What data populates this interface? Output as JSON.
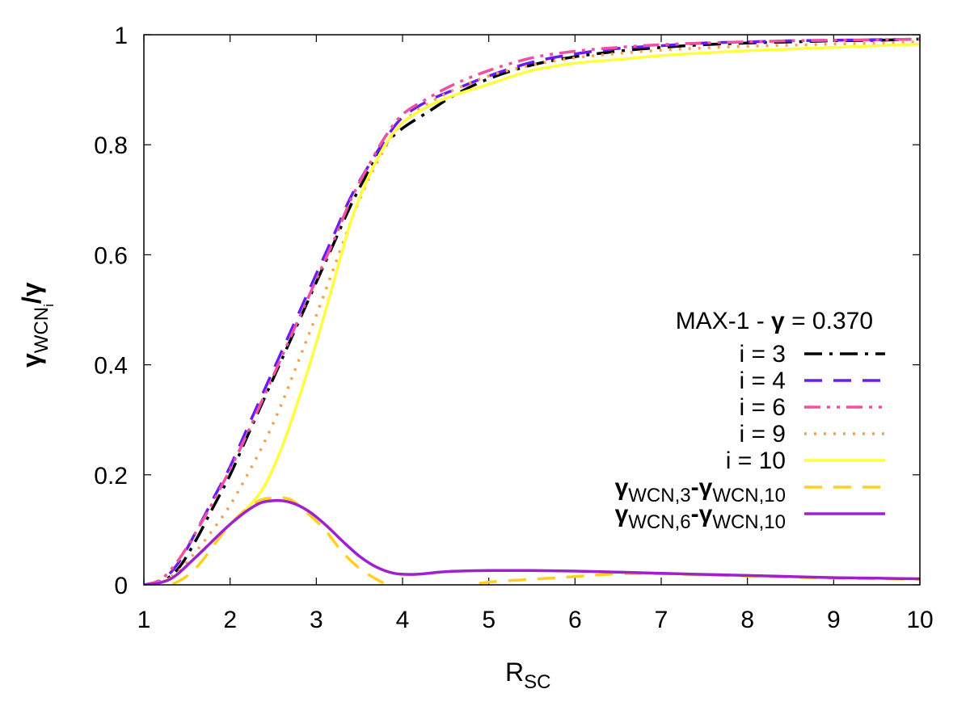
{
  "chart_data": {
    "type": "line",
    "title": "",
    "xlabel": "R",
    "xlabel_sub": "SC",
    "ylabel": "γ",
    "ylabel_sub": "WCN",
    "ylabel_subsub": "i",
    "ylabel_tail": "/γ",
    "xlim": [
      1,
      10
    ],
    "ylim": [
      0,
      1
    ],
    "xticks": [
      1,
      2,
      3,
      4,
      5,
      6,
      7,
      8,
      9,
      10
    ],
    "yticks": [
      0,
      0.2,
      0.4,
      0.6,
      0.8,
      1
    ],
    "ytick_labels": [
      "0",
      "0.2",
      "0.4",
      "0.6",
      "0.8",
      "1"
    ],
    "legend_title": {
      "prefix": "MAX-1 - ",
      "gamma": "γ",
      "suffix": " = 0.370"
    },
    "legend_position": "center-right",
    "series": [
      {
        "name": "i = 3",
        "color": "#000000",
        "style": "dash-dot",
        "x": [
          1.0,
          1.2,
          1.4,
          1.6,
          1.8,
          2.0,
          2.2,
          2.4,
          2.6,
          2.8,
          3.0,
          3.2,
          3.4,
          3.6,
          3.8,
          4.0,
          4.3,
          4.6,
          5.0,
          5.5,
          6.0,
          6.5,
          7.0,
          7.5,
          8.0,
          8.5,
          9.0,
          9.5,
          10.0
        ],
        "y": [
          0.0,
          0.005,
          0.03,
          0.08,
          0.14,
          0.2,
          0.27,
          0.34,
          0.41,
          0.48,
          0.55,
          0.62,
          0.69,
          0.75,
          0.8,
          0.83,
          0.86,
          0.89,
          0.92,
          0.945,
          0.96,
          0.97,
          0.977,
          0.982,
          0.985,
          0.987,
          0.989,
          0.99,
          0.992
        ]
      },
      {
        "name": "i = 4",
        "color": "#6a1bf5",
        "style": "dash",
        "x": [
          1.0,
          1.2,
          1.4,
          1.6,
          1.8,
          2.0,
          2.2,
          2.4,
          2.6,
          2.8,
          3.0,
          3.2,
          3.4,
          3.6,
          3.8,
          4.0,
          4.3,
          4.6,
          5.0,
          5.5,
          6.0,
          6.5,
          7.0,
          7.5,
          8.0,
          8.5,
          9.0,
          9.5,
          10.0
        ],
        "y": [
          0.0,
          0.007,
          0.04,
          0.095,
          0.155,
          0.215,
          0.285,
          0.355,
          0.425,
          0.495,
          0.565,
          0.635,
          0.705,
          0.76,
          0.81,
          0.85,
          0.88,
          0.9,
          0.925,
          0.95,
          0.965,
          0.975,
          0.98,
          0.985,
          0.987,
          0.989,
          0.99,
          0.991,
          0.992
        ]
      },
      {
        "name": "i = 6",
        "color": "#f050a0",
        "style": "dash-dot-dot",
        "x": [
          1.0,
          1.2,
          1.4,
          1.6,
          1.8,
          2.0,
          2.2,
          2.4,
          2.6,
          2.8,
          3.0,
          3.2,
          3.4,
          3.6,
          3.8,
          4.0,
          4.3,
          4.6,
          5.0,
          5.5,
          6.0,
          6.5,
          7.0,
          7.5,
          8.0,
          8.5,
          9.0,
          9.5,
          10.0
        ],
        "y": [
          0.0,
          0.01,
          0.045,
          0.095,
          0.15,
          0.21,
          0.275,
          0.345,
          0.415,
          0.485,
          0.555,
          0.625,
          0.7,
          0.76,
          0.815,
          0.855,
          0.885,
          0.91,
          0.935,
          0.958,
          0.97,
          0.977,
          0.982,
          0.985,
          0.987,
          0.989,
          0.99,
          0.991,
          0.992
        ]
      },
      {
        "name": "i = 9",
        "color": "#f5a050",
        "style": "dot",
        "x": [
          1.0,
          1.2,
          1.4,
          1.6,
          1.8,
          2.0,
          2.2,
          2.4,
          2.6,
          2.8,
          3.0,
          3.2,
          3.4,
          3.6,
          3.8,
          4.0,
          4.3,
          4.6,
          5.0,
          5.5,
          6.0,
          6.5,
          7.0,
          7.5,
          8.0,
          8.5,
          9.0,
          9.5,
          10.0
        ],
        "y": [
          0.0,
          0.005,
          0.025,
          0.06,
          0.1,
          0.145,
          0.2,
          0.26,
          0.33,
          0.41,
          0.49,
          0.575,
          0.66,
          0.735,
          0.795,
          0.84,
          0.875,
          0.9,
          0.925,
          0.945,
          0.958,
          0.966,
          0.972,
          0.976,
          0.979,
          0.981,
          0.983,
          0.985,
          0.987
        ]
      },
      {
        "name": "i = 10",
        "color": "#ffff40",
        "style": "solid",
        "x": [
          1.0,
          1.2,
          1.4,
          1.6,
          1.8,
          2.0,
          2.2,
          2.4,
          2.6,
          2.8,
          3.0,
          3.2,
          3.4,
          3.6,
          3.8,
          4.0,
          4.3,
          4.6,
          5.0,
          5.5,
          6.0,
          6.5,
          7.0,
          7.5,
          8.0,
          8.5,
          9.0,
          9.5,
          10.0
        ],
        "y": [
          0.0,
          0.005,
          0.02,
          0.05,
          0.08,
          0.11,
          0.14,
          0.18,
          0.25,
          0.34,
          0.44,
          0.55,
          0.66,
          0.74,
          0.8,
          0.84,
          0.87,
          0.89,
          0.91,
          0.935,
          0.948,
          0.955,
          0.962,
          0.967,
          0.971,
          0.974,
          0.977,
          0.98,
          0.983
        ]
      },
      {
        "name": "γWCN,3-γWCN,10",
        "name_parts": [
          "γ",
          "WCN,3",
          "-γ",
          "WCN,10"
        ],
        "color": "#ffd020",
        "style": "dash",
        "x": [
          1.0,
          1.3,
          1.6,
          2.0,
          2.3,
          2.5,
          2.7,
          2.9,
          3.1,
          3.3,
          3.5,
          3.7,
          3.9,
          4.1,
          4.3,
          4.5,
          4.7,
          5.0,
          5.5,
          6.0,
          6.5,
          7.0,
          7.5,
          8.0,
          8.5,
          9.0,
          9.5,
          10.0
        ],
        "y": [
          0.0,
          0.0,
          0.03,
          0.11,
          0.15,
          0.158,
          0.155,
          0.13,
          0.1,
          0.06,
          0.03,
          0.01,
          -0.005,
          -0.015,
          -0.015,
          -0.01,
          -0.003,
          0.005,
          0.01,
          0.015,
          0.02,
          0.02,
          0.018,
          0.016,
          0.014,
          0.012,
          0.011,
          0.01
        ]
      },
      {
        "name": "γWCN,6-γWCN,10",
        "name_parts": [
          "γ",
          "WCN,6",
          "-γ",
          "WCN,10"
        ],
        "color": "#a020d0",
        "style": "solid",
        "x": [
          1.0,
          1.3,
          1.6,
          2.0,
          2.3,
          2.5,
          2.7,
          2.9,
          3.1,
          3.3,
          3.5,
          3.7,
          3.9,
          4.1,
          4.3,
          4.5,
          5.0,
          5.5,
          6.0,
          6.5,
          7.0,
          7.5,
          8.0,
          8.5,
          9.0,
          9.5,
          10.0
        ],
        "y": [
          0.0,
          0.01,
          0.05,
          0.11,
          0.145,
          0.153,
          0.15,
          0.135,
          0.11,
          0.08,
          0.052,
          0.032,
          0.021,
          0.019,
          0.021,
          0.024,
          0.026,
          0.026,
          0.025,
          0.023,
          0.021,
          0.019,
          0.017,
          0.015,
          0.013,
          0.012,
          0.011
        ]
      }
    ]
  }
}
